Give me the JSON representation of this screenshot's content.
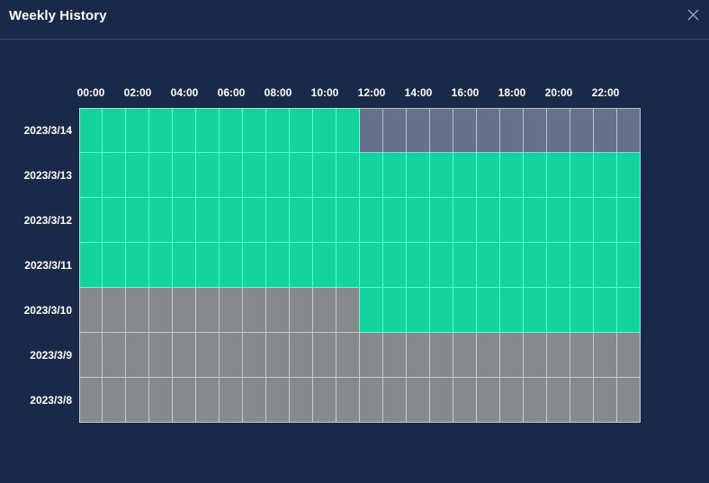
{
  "window": {
    "title": "Weekly History",
    "close_icon": "close-icon"
  },
  "colors": {
    "background": "#192949",
    "online": "#13d39f",
    "offline": "#858a8d",
    "no_data": "#64728b"
  },
  "hour_labels": [
    "00:00",
    "02:00",
    "04:00",
    "06:00",
    "08:00",
    "10:00",
    "12:00",
    "14:00",
    "16:00",
    "18:00",
    "20:00",
    "22:00"
  ],
  "rows": [
    {
      "date": "2023/3/14",
      "status": [
        "on",
        "on",
        "on",
        "on",
        "on",
        "on",
        "on",
        "on",
        "on",
        "on",
        "on",
        "on",
        "none",
        "none",
        "none",
        "none",
        "none",
        "none",
        "none",
        "none",
        "none",
        "none",
        "none",
        "none"
      ]
    },
    {
      "date": "2023/3/13",
      "status": [
        "on",
        "on",
        "on",
        "on",
        "on",
        "on",
        "on",
        "on",
        "on",
        "on",
        "on",
        "on",
        "on",
        "on",
        "on",
        "on",
        "on",
        "on",
        "on",
        "on",
        "on",
        "on",
        "on",
        "on"
      ]
    },
    {
      "date": "2023/3/12",
      "status": [
        "on",
        "on",
        "on",
        "on",
        "on",
        "on",
        "on",
        "on",
        "on",
        "on",
        "on",
        "on",
        "on",
        "on",
        "on",
        "on",
        "on",
        "on",
        "on",
        "on",
        "on",
        "on",
        "on",
        "on"
      ]
    },
    {
      "date": "2023/3/11",
      "status": [
        "on",
        "on",
        "on",
        "on",
        "on",
        "on",
        "on",
        "on",
        "on",
        "on",
        "on",
        "on",
        "on",
        "on",
        "on",
        "on",
        "on",
        "on",
        "on",
        "on",
        "on",
        "on",
        "on",
        "on"
      ]
    },
    {
      "date": "2023/3/10",
      "status": [
        "off",
        "off",
        "off",
        "off",
        "off",
        "off",
        "off",
        "off",
        "off",
        "off",
        "off",
        "off",
        "on",
        "on",
        "on",
        "on",
        "on",
        "on",
        "on",
        "on",
        "on",
        "on",
        "on",
        "on"
      ]
    },
    {
      "date": "2023/3/9",
      "status": [
        "off",
        "off",
        "off",
        "off",
        "off",
        "off",
        "off",
        "off",
        "off",
        "off",
        "off",
        "off",
        "off",
        "off",
        "off",
        "off",
        "off",
        "off",
        "off",
        "off",
        "off",
        "off",
        "off",
        "off"
      ]
    },
    {
      "date": "2023/3/8",
      "status": [
        "off",
        "off",
        "off",
        "off",
        "off",
        "off",
        "off",
        "off",
        "off",
        "off",
        "off",
        "off",
        "off",
        "off",
        "off",
        "off",
        "off",
        "off",
        "off",
        "off",
        "off",
        "off",
        "off",
        "off"
      ]
    }
  ]
}
